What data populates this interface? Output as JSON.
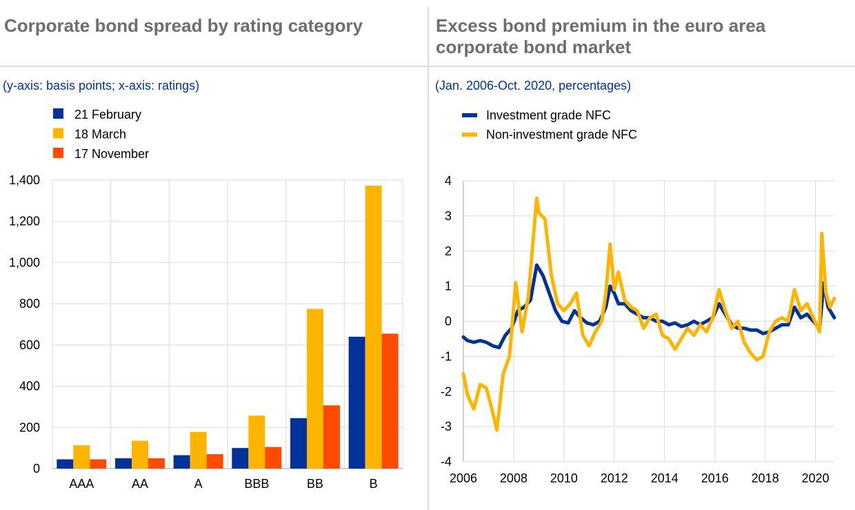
{
  "chart_data": [
    {
      "type": "bar",
      "title": "Corporate bond spread by rating category",
      "subtitle": "(y-axis: basis points; x-axis: ratings)",
      "categories": [
        "AAA",
        "AA",
        "A",
        "BBB",
        "BB",
        "B"
      ],
      "series": [
        {
          "name": "21 February",
          "color": "#003299",
          "values": [
            45,
            50,
            65,
            100,
            245,
            640
          ]
        },
        {
          "name": "18 March",
          "color": "#FFB400",
          "values": [
            113,
            135,
            178,
            257,
            775,
            1373
          ]
        },
        {
          "name": "17 November",
          "color": "#FF4B00",
          "values": [
            45,
            50,
            70,
            105,
            307,
            655
          ]
        }
      ],
      "ylim": [
        0,
        1400
      ],
      "yticks": [
        0,
        200,
        400,
        600,
        800,
        1000,
        1200,
        1400
      ],
      "ytick_labels": [
        "0",
        "200",
        "400",
        "600",
        "800",
        "1,000",
        "1,200",
        "1,400"
      ],
      "grid": true,
      "legend_position": "top-left"
    },
    {
      "type": "line",
      "title": "Excess bond premium in the euro area corporate bond market",
      "subtitle": "(Jan. 2006-Oct. 2020, percentages)",
      "xlim": [
        "2006-01",
        "2020-10"
      ],
      "xticks": [
        "2006",
        "2008",
        "2010",
        "2012",
        "2014",
        "2016",
        "2018",
        "2020"
      ],
      "ylim": [
        -4,
        4
      ],
      "yticks": [
        "4",
        "3",
        "2",
        "1",
        "0",
        "-1",
        "-2",
        "-3",
        "-4"
      ],
      "grid": true,
      "legend_position": "top-left",
      "series": [
        {
          "name": "Investment grade NFC",
          "color": "#003299",
          "x": [
            "2006-01",
            "2006-03",
            "2006-06",
            "2006-09",
            "2006-12",
            "2007-03",
            "2007-06",
            "2007-09",
            "2007-12",
            "2008-03",
            "2008-06",
            "2008-09",
            "2008-12",
            "2009-03",
            "2009-06",
            "2009-09",
            "2009-12",
            "2010-03",
            "2010-06",
            "2010-09",
            "2010-12",
            "2011-03",
            "2011-06",
            "2011-09",
            "2011-11",
            "2012-01",
            "2012-03",
            "2012-06",
            "2012-09",
            "2012-12",
            "2013-03",
            "2013-06",
            "2013-09",
            "2013-12",
            "2014-03",
            "2014-06",
            "2014-09",
            "2014-12",
            "2015-03",
            "2015-06",
            "2015-09",
            "2015-12",
            "2016-03",
            "2016-06",
            "2016-09",
            "2016-12",
            "2017-03",
            "2017-06",
            "2017-09",
            "2017-12",
            "2018-03",
            "2018-06",
            "2018-09",
            "2018-12",
            "2019-03",
            "2019-06",
            "2019-09",
            "2019-12",
            "2020-03",
            "2020-05",
            "2020-07",
            "2020-10"
          ],
          "y": [
            -0.45,
            -0.55,
            -0.6,
            -0.55,
            -0.6,
            -0.7,
            -0.75,
            -0.4,
            -0.2,
            0.3,
            0.4,
            0.6,
            1.6,
            1.3,
            0.8,
            0.3,
            0.0,
            -0.05,
            0.3,
            0.1,
            -0.05,
            -0.1,
            0.0,
            0.4,
            1.0,
            0.8,
            0.5,
            0.5,
            0.3,
            0.2,
            0.1,
            0.1,
            0.0,
            0.0,
            -0.1,
            -0.05,
            -0.15,
            -0.1,
            0.0,
            -0.1,
            0.0,
            0.1,
            0.5,
            0.2,
            -0.1,
            -0.2,
            -0.2,
            -0.25,
            -0.25,
            -0.35,
            -0.3,
            -0.2,
            -0.1,
            -0.1,
            0.4,
            0.1,
            0.2,
            0.0,
            -0.2,
            1.1,
            0.4,
            0.1
          ]
        },
        {
          "name": "Non-investment grade NFC",
          "color": "#FFB400",
          "x": [
            "2006-01",
            "2006-03",
            "2006-06",
            "2006-09",
            "2006-12",
            "2007-03",
            "2007-05",
            "2007-08",
            "2007-11",
            "2008-02",
            "2008-05",
            "2008-08",
            "2008-12",
            "2009-01",
            "2009-04",
            "2009-07",
            "2009-10",
            "2010-01",
            "2010-04",
            "2010-07",
            "2010-10",
            "2011-01",
            "2011-04",
            "2011-07",
            "2011-09",
            "2011-11",
            "2012-01",
            "2012-03",
            "2012-06",
            "2012-09",
            "2012-12",
            "2013-03",
            "2013-06",
            "2013-09",
            "2013-12",
            "2014-03",
            "2014-06",
            "2014-09",
            "2014-12",
            "2015-03",
            "2015-06",
            "2015-09",
            "2015-12",
            "2016-03",
            "2016-06",
            "2016-09",
            "2016-12",
            "2017-03",
            "2017-06",
            "2017-09",
            "2017-12",
            "2018-03",
            "2018-06",
            "2018-09",
            "2018-12",
            "2019-03",
            "2019-06",
            "2019-09",
            "2019-12",
            "2020-03",
            "2020-04",
            "2020-06",
            "2020-08",
            "2020-10"
          ],
          "y": [
            -1.5,
            -2.1,
            -2.5,
            -1.8,
            -1.9,
            -2.6,
            -3.1,
            -1.5,
            -1.0,
            1.1,
            -0.3,
            0.7,
            3.5,
            3.1,
            2.9,
            1.3,
            0.5,
            0.3,
            0.5,
            0.8,
            -0.4,
            -0.7,
            -0.3,
            0.0,
            0.8,
            2.2,
            0.9,
            1.4,
            0.6,
            0.4,
            0.3,
            -0.2,
            0.1,
            0.2,
            -0.4,
            -0.5,
            -0.8,
            -0.5,
            -0.2,
            -0.4,
            -0.1,
            -0.3,
            0.1,
            0.9,
            0.3,
            -0.2,
            0.0,
            -0.6,
            -0.9,
            -1.1,
            -1.0,
            -0.3,
            0.0,
            0.1,
            0.0,
            0.9,
            0.3,
            0.5,
            0.1,
            -0.3,
            2.5,
            0.8,
            0.4,
            0.65
          ]
        }
      ]
    }
  ]
}
